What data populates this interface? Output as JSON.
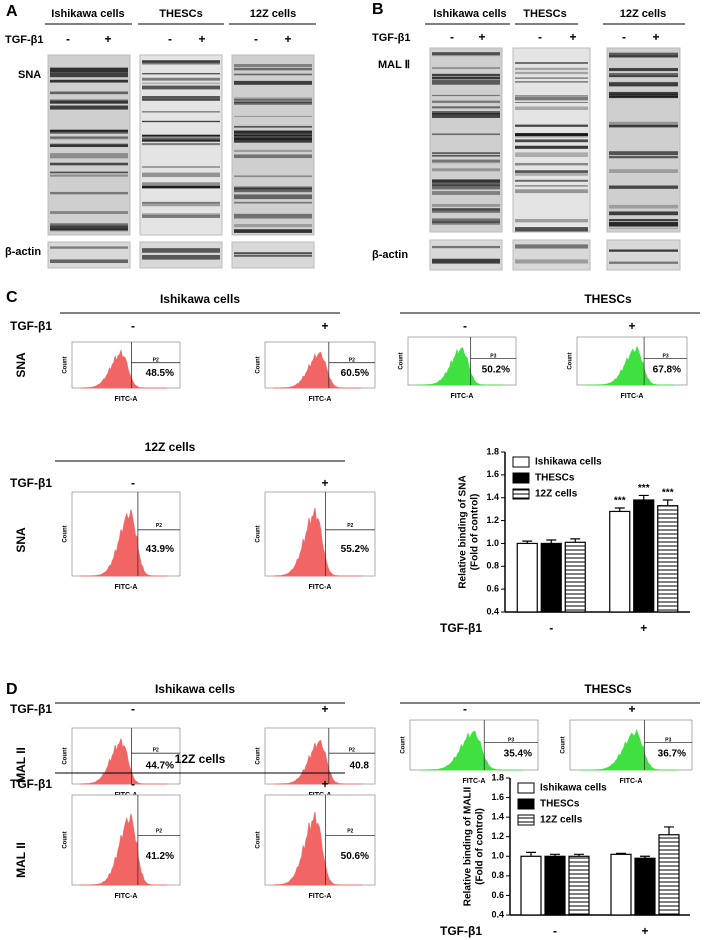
{
  "panel_a": {
    "label": "A",
    "groups": [
      "Ishikawa cells",
      "THESCs",
      "12Z cells"
    ],
    "treatment": "TGF-β1",
    "signs": [
      "-",
      "+"
    ],
    "lectin": "SNA",
    "loading": "β-actin"
  },
  "panel_b": {
    "label": "B",
    "groups": [
      "Ishikawa cells",
      "THESCs",
      "12Z cells"
    ],
    "treatment": "TGF-β1",
    "signs": [
      "-",
      "+"
    ],
    "lectin": "MAL Ⅱ",
    "loading": "β-actin"
  },
  "panel_c": {
    "label": "C",
    "lectin": "SNA",
    "treatment": "TGF-β1",
    "signs": [
      "-",
      "+"
    ],
    "x_axis": "FITC-A",
    "y_axis": "Count",
    "groups": [
      {
        "name": "Ishikawa cells",
        "color": "#f26565",
        "gate": "P2",
        "percents": [
          "48.5%",
          "60.5%"
        ]
      },
      {
        "name": "THESCs",
        "color": "#3fe03f",
        "gate": "P3",
        "percents": [
          "50.2%",
          "67.8%"
        ]
      },
      {
        "name": "12Z cells",
        "color": "#f26565",
        "gate": "P2",
        "percents": [
          "43.9%",
          "55.2%"
        ]
      }
    ]
  },
  "panel_d": {
    "label": "D",
    "lectin": "MAL II",
    "treatment": "TGF-β1",
    "signs": [
      "-",
      "+"
    ],
    "x_axis": "FITC-A",
    "y_axis": "Count",
    "groups": [
      {
        "name": "Ishikawa cells",
        "color": "#f26565",
        "gate": "P2",
        "percents": [
          "44.7%",
          "40.8"
        ]
      },
      {
        "name": "THESCs",
        "color": "#3fe03f",
        "gate": "P3",
        "percents": [
          "35.4%",
          "36.7%"
        ]
      },
      {
        "name": "12Z cells",
        "color": "#f26565",
        "gate": "P2",
        "percents": [
          "41.2%",
          "50.6%"
        ]
      }
    ]
  },
  "chart_data": [
    {
      "type": "bar",
      "ylabel": [
        "Relative binding of SNA",
        "(Fold of control)"
      ],
      "xlabel": "TGF-β1",
      "categories": [
        "-",
        "+"
      ],
      "ylim": [
        0.4,
        1.8
      ],
      "yticks": [
        0.4,
        0.6,
        0.8,
        {
          "value": 1,
          "label": "1.0"
        },
        1.2,
        1.4,
        1.6,
        1.8
      ],
      "legend": "top-left",
      "series": [
        {
          "name": "Ishikawa cells",
          "color": "#ffffff",
          "values": [
            1.0,
            1.28
          ],
          "errors": [
            0.02,
            0.03
          ],
          "annotations": [
            null,
            "***"
          ]
        },
        {
          "name": "THESCs",
          "color": "#000000",
          "values": [
            1.0,
            1.38
          ],
          "errors": [
            0.03,
            0.04
          ],
          "annotations": [
            null,
            "***"
          ]
        },
        {
          "name": "12Z cells",
          "color": "#ffffff",
          "hatch": "horizontal",
          "values": [
            1.01,
            1.33
          ],
          "errors": [
            0.03,
            0.05
          ],
          "annotations": [
            null,
            "***"
          ]
        }
      ]
    },
    {
      "type": "bar",
      "ylabel": [
        "Relative binding of MALII",
        "(Fold of control)"
      ],
      "xlabel": "TGF-β1",
      "categories": [
        "-",
        "+"
      ],
      "ylim": [
        0.4,
        1.8
      ],
      "yticks": [
        0.4,
        0.6,
        0.8,
        {
          "value": 1,
          "label": "1.0"
        },
        1.2,
        1.4,
        1.6,
        1.8
      ],
      "legend": "top-left",
      "series": [
        {
          "name": "Ishikawa cells",
          "color": "#ffffff",
          "values": [
            1.0,
            1.02
          ],
          "errors": [
            0.04,
            0.01
          ]
        },
        {
          "name": "THESCs",
          "color": "#000000",
          "values": [
            1.0,
            0.98
          ],
          "errors": [
            0.02,
            0.02
          ]
        },
        {
          "name": "12Z cells",
          "color": "#ffffff",
          "hatch": "horizontal",
          "values": [
            1.0,
            1.22
          ],
          "errors": [
            0.02,
            0.08
          ]
        }
      ]
    }
  ]
}
